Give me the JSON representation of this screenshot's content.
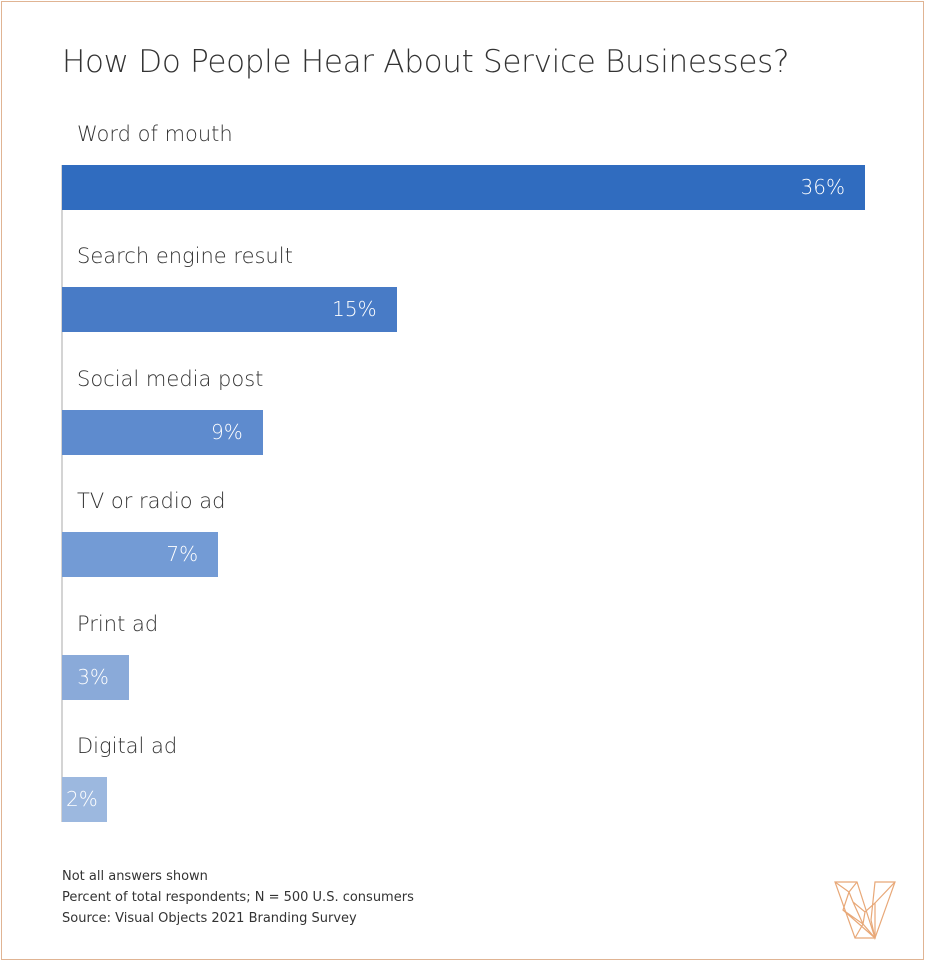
{
  "chart_data": {
    "type": "bar",
    "orientation": "horizontal",
    "title": "How Do People Hear About Service Businesses?",
    "categories": [
      "Word of mouth",
      "Search engine result",
      "Social media post",
      "TV or radio ad",
      "Print ad",
      "Digital ad"
    ],
    "values": [
      36,
      15,
      9,
      7,
      3,
      2
    ],
    "value_labels": [
      "36%",
      "15%",
      "9%",
      "7%",
      "3%",
      "2%"
    ],
    "unit": "%",
    "xlim": [
      0,
      36
    ],
    "grid": false,
    "colors": [
      "#306cbf",
      "#487bc6",
      "#5e8bce",
      "#739bd5",
      "#8aaad9",
      "#9cb8df"
    ]
  },
  "notes": [
    "Not all answers shown",
    "Percent of total respondents; N = 500 U.S. consumers",
    "Source: Visual Objects 2021 Branding Survey"
  ],
  "logo": {
    "name": "visual-objects-logo",
    "color": "#e8a878"
  }
}
